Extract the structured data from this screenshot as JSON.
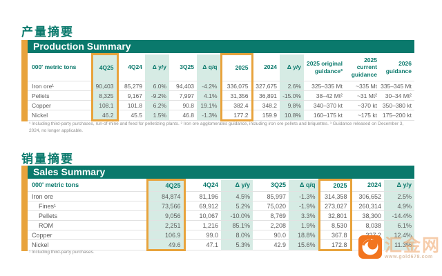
{
  "headings": {
    "production_zh": "产量摘要",
    "sales_zh": "销量摘要"
  },
  "production": {
    "title": "Production Summary",
    "unit_label": "000' metric tons",
    "columns": [
      "4Q25",
      "4Q24",
      "Δ y/y",
      "3Q25",
      "Δ q/q",
      "2025",
      "2024",
      "Δ y/y",
      "2025 original guidance³",
      "2025 current guidance",
      "2026 guidance"
    ],
    "rows": [
      {
        "label": "Iron ore¹",
        "indent": false,
        "cells": [
          "90,403",
          "85,279",
          "6.0%",
          "94,403",
          "-4.2%",
          "336,075",
          "327,675",
          "2.6%",
          "325–335 Mt",
          "~335 Mt",
          "335–345 Mt"
        ]
      },
      {
        "label": "Pellets",
        "indent": false,
        "cells": [
          "8,325",
          "9,167",
          "-9.2%",
          "7,997",
          "4.1%",
          "31,356",
          "36,891",
          "-15.0%",
          "38–42 Mt²",
          "~31 Mt²",
          "30–34 Mt²"
        ]
      },
      {
        "label": "Copper",
        "indent": false,
        "cells": [
          "108.1",
          "101.8",
          "6.2%",
          "90.8",
          "19.1%",
          "382.4",
          "348.2",
          "9.8%",
          "340–370 kt",
          "~370 kt",
          "350–380 kt"
        ]
      },
      {
        "label": "Nickel",
        "indent": false,
        "cells": [
          "46.2",
          "45.5",
          "1.5%",
          "46.8",
          "-1.3%",
          "177.2",
          "159.9",
          "10.8%",
          "160–175 kt",
          "~175 kt",
          "175–200 kt"
        ]
      }
    ],
    "footnote": "¹ Including third-party purchases, run-of-mine and feed for pelletizing plants. ² Iron ore agglomerates guidance, including iron ore pellets and briquettes. ³ Guidance released on December 3, 2024, no longer applicable."
  },
  "sales": {
    "title": "Sales Summary",
    "unit_label": "000' metric tons",
    "columns": [
      "4Q25",
      "4Q24",
      "Δ y/y",
      "3Q25",
      "Δ q/q",
      "2025",
      "2024",
      "Δ y/y"
    ],
    "rows": [
      {
        "label": "Iron ore",
        "indent": false,
        "cells": [
          "84,874",
          "81,196",
          "4.5%",
          "85,997",
          "-1.3%",
          "314,358",
          "306,652",
          "2.5%"
        ]
      },
      {
        "label": "Fines¹",
        "indent": true,
        "cells": [
          "73,566",
          "69,912",
          "5.2%",
          "75,020",
          "-1.9%",
          "273,027",
          "260,314",
          "4.9%"
        ]
      },
      {
        "label": "Pellets",
        "indent": true,
        "cells": [
          "9,056",
          "10,067",
          "-10.0%",
          "8,769",
          "3.3%",
          "32,801",
          "38,300",
          "-14.4%"
        ]
      },
      {
        "label": "ROM",
        "indent": true,
        "cells": [
          "2,251",
          "1,216",
          "85.1%",
          "2,208",
          "1.9%",
          "8,530",
          "8,038",
          "6.1%"
        ]
      },
      {
        "label": "Copper",
        "indent": false,
        "cells": [
          "106.9",
          "99.0",
          "8.0%",
          "90.0",
          "18.8%",
          "367.8",
          "327.2",
          "12.4%"
        ]
      },
      {
        "label": "Nickel",
        "indent": false,
        "cells": [
          "49.6",
          "47.1",
          "5.3%",
          "42.9",
          "15.6%",
          "172.8",
          "155.2",
          "11.3%"
        ]
      }
    ],
    "footnote": "¹ Including third-party purchases."
  },
  "watermark": {
    "site_name": "汇金网",
    "site_url": "www.gold678.com"
  },
  "colors": {
    "teal": "#0a796c",
    "mint": "#d6ebe4",
    "gold": "#e8a33c",
    "logo_orange": "#f2751f"
  }
}
